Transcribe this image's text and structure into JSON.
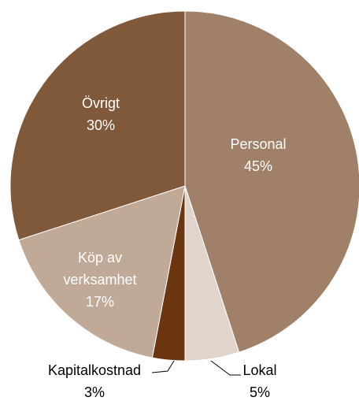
{
  "chart_data": {
    "type": "pie",
    "categories": [
      "Personal",
      "Lokal",
      "Kapitalkostnad",
      "Köp av verksamhet",
      "Övrigt"
    ],
    "values": [
      45,
      5,
      3,
      17,
      30
    ],
    "value_labels": [
      "45%",
      "5%",
      "3%",
      "17%",
      "30%"
    ],
    "colors": [
      "#a08068",
      "#e0d4cb",
      "#6b3510",
      "#c1a998",
      "#80583a"
    ]
  }
}
